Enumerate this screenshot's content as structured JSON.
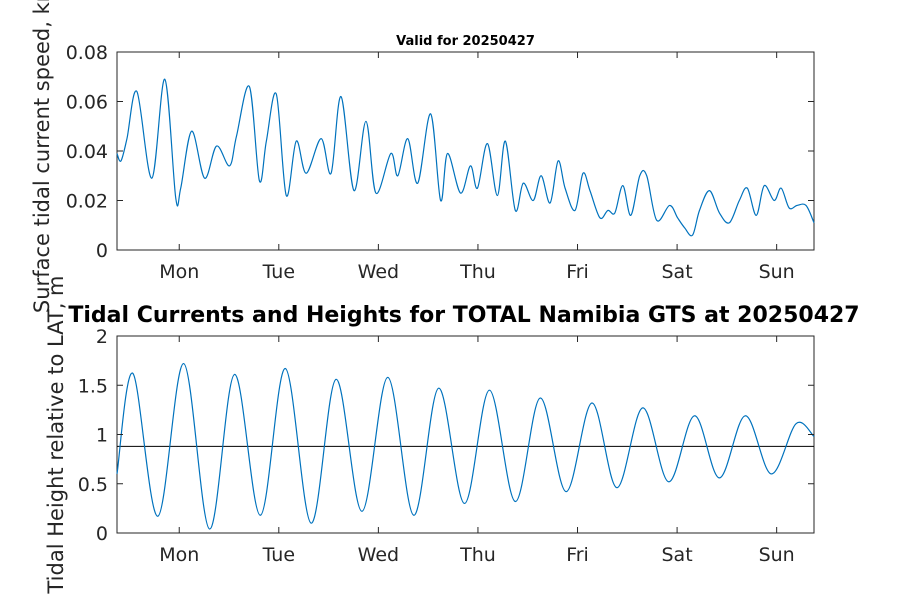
{
  "chart_data": [
    {
      "type": "line",
      "title": "Valid for 20250427",
      "ylabel": "Surface tidal current speed, kn",
      "ylim": [
        0,
        0.08
      ],
      "yticks": [
        0,
        0.02,
        0.04,
        0.06,
        0.08
      ],
      "ytick_labels": [
        "0",
        "0.02",
        "0.04",
        "0.06",
        "0.08"
      ],
      "xlim": [
        0,
        7
      ],
      "xticks": [
        0.625,
        1.625,
        2.625,
        3.625,
        4.625,
        5.625,
        6.625
      ],
      "xtick_labels": [
        "Mon",
        "Tue",
        "Wed",
        "Thu",
        "Fri",
        "Sat",
        "Sun"
      ],
      "grid": false,
      "series": [
        {
          "x": [
            0,
            0.04,
            0.1,
            0.2,
            0.35,
            0.48,
            0.59,
            0.64,
            0.75,
            0.88,
            1.0,
            1.13,
            1.2,
            1.33,
            1.43,
            1.5,
            1.6,
            1.7,
            1.8,
            1.9,
            2.05,
            2.15,
            2.25,
            2.38,
            2.5,
            2.6,
            2.75,
            2.82,
            2.92,
            3.02,
            3.15,
            3.25,
            3.32,
            3.45,
            3.55,
            3.62,
            3.72,
            3.82,
            3.9,
            4.0,
            4.08,
            4.18,
            4.26,
            4.35,
            4.43,
            4.5,
            4.6,
            4.68,
            4.75,
            4.85,
            4.93,
            5.0,
            5.08,
            5.16,
            5.25,
            5.32,
            5.42,
            5.55,
            5.63,
            5.7,
            5.78,
            5.85,
            5.95,
            6.05,
            6.15,
            6.25,
            6.33,
            6.42,
            6.5,
            6.6,
            6.67,
            6.75,
            6.83,
            6.92,
            7.0
          ],
          "y": [
            0.039,
            0.036,
            0.045,
            0.064,
            0.029,
            0.069,
            0.021,
            0.025,
            0.048,
            0.029,
            0.042,
            0.034,
            0.046,
            0.066,
            0.028,
            0.044,
            0.063,
            0.022,
            0.044,
            0.031,
            0.045,
            0.031,
            0.062,
            0.024,
            0.052,
            0.023,
            0.039,
            0.03,
            0.045,
            0.027,
            0.055,
            0.02,
            0.039,
            0.023,
            0.034,
            0.025,
            0.043,
            0.022,
            0.044,
            0.016,
            0.027,
            0.02,
            0.03,
            0.019,
            0.036,
            0.025,
            0.016,
            0.031,
            0.024,
            0.013,
            0.016,
            0.015,
            0.026,
            0.014,
            0.03,
            0.03,
            0.012,
            0.018,
            0.013,
            0.009,
            0.006,
            0.016,
            0.024,
            0.015,
            0.011,
            0.02,
            0.025,
            0.014,
            0.026,
            0.02,
            0.025,
            0.017,
            0.018,
            0.018,
            0.011
          ]
        }
      ]
    },
    {
      "type": "line",
      "title": "Tidal Currents and Heights for TOTAL Namibia GTS at 20250427",
      "ylabel": "Tidal Height relative to LAT, m",
      "ylim": [
        0,
        2
      ],
      "yticks": [
        0,
        0.5,
        1,
        1.5,
        2
      ],
      "ytick_labels": [
        "0",
        "0.5",
        "1",
        "1.5",
        "2"
      ],
      "xlim": [
        0,
        7
      ],
      "xticks": [
        0.625,
        1.625,
        2.625,
        3.625,
        4.625,
        5.625,
        6.625
      ],
      "xtick_labels": [
        "Mon",
        "Tue",
        "Wed",
        "Thu",
        "Fri",
        "Sat",
        "Sun"
      ],
      "grid": false,
      "reference_line": 0.88,
      "series": [
        {
          "x": [
            0,
            0.16,
            0.41,
            0.67,
            0.93,
            1.18,
            1.44,
            1.69,
            1.95,
            2.2,
            2.46,
            2.72,
            2.98,
            3.23,
            3.49,
            3.74,
            4.0,
            4.25,
            4.51,
            4.77,
            5.02,
            5.28,
            5.54,
            5.8,
            6.05,
            6.31,
            6.57,
            6.82,
            7.0
          ],
          "y": [
            0.6,
            1.62,
            0.17,
            1.72,
            0.04,
            1.61,
            0.18,
            1.67,
            0.1,
            1.56,
            0.22,
            1.58,
            0.18,
            1.47,
            0.3,
            1.45,
            0.32,
            1.37,
            0.42,
            1.32,
            0.46,
            1.27,
            0.52,
            1.19,
            0.56,
            1.19,
            0.6,
            1.11,
            0.98
          ]
        }
      ]
    }
  ]
}
